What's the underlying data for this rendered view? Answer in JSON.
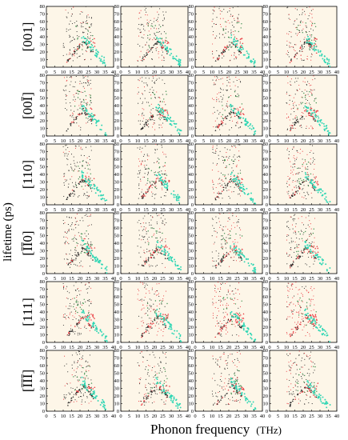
{
  "figure": {
    "ylabel": "lifetime (ps)",
    "xlabel": "Phonon frequency",
    "xlabel_unit": "(THz)",
    "row_labels": [
      "[001]",
      "[00Ī]",
      "[110]",
      "[ĪĪ0]",
      "[111]",
      "[ĪĪĪ]"
    ],
    "colors": {
      "plot_bg": "#fdf6e8",
      "series_black": "#222222",
      "series_red": "#e8333a",
      "series_cyan": "#2fd6b4",
      "series_green": "#3f8f4f"
    }
  },
  "chart_data": {
    "type": "scatter",
    "layout": "grid 6 rows x 4 columns",
    "x_ticks": [
      0,
      5,
      10,
      15,
      20,
      25,
      30,
      35,
      40
    ],
    "y_ticks": [
      0,
      10,
      20,
      30,
      40,
      50,
      60,
      70,
      80
    ],
    "x_tick_labels": [
      "0",
      "5",
      "10",
      "15",
      "20",
      "25",
      "30",
      "35",
      "40"
    ],
    "y_tick_labels": [
      "0",
      "10",
      "20",
      "30",
      "40",
      "50",
      "60",
      "70",
      "80"
    ],
    "xlim": [
      0,
      40
    ],
    "ylim": [
      0,
      80
    ],
    "grid": false,
    "panels_per_row": 4,
    "series": [
      {
        "color": "black",
        "shape": "triangle"
      },
      {
        "color": "red",
        "shape": "triangle"
      },
      {
        "color": "cyan"
      },
      {
        "color": "green"
      }
    ]
  }
}
